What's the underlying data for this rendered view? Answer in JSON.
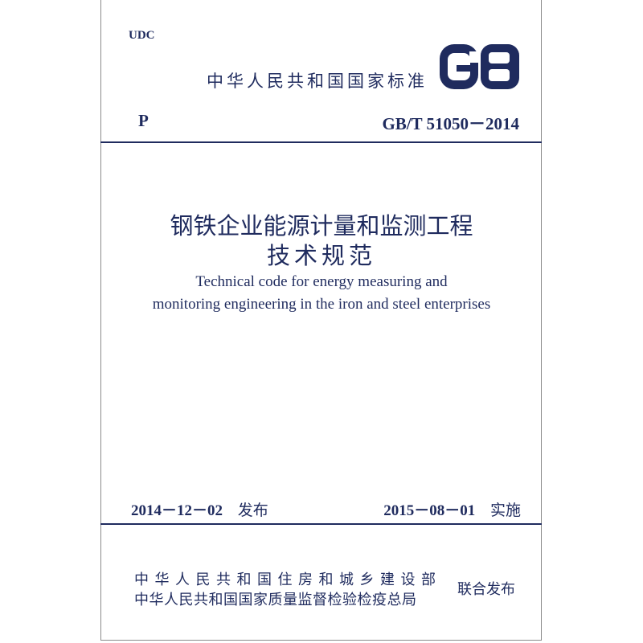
{
  "header": {
    "udc": "UDC",
    "national_standard": "中华人民共和国国家标准",
    "logo_text": "GB",
    "category": "P",
    "standard_code": "GB/T 51050－2014"
  },
  "title": {
    "zh_line1": "钢铁企业能源计量和监测工程",
    "zh_line2": "技术规范",
    "en_line1": "Technical code for energy measuring and",
    "en_line2": "monitoring engineering in the iron and steel enterprises"
  },
  "dates": {
    "issue": "2014－12－02",
    "issue_label": "发布",
    "implement": "2015－08－01",
    "implement_label": "实施"
  },
  "publishers": {
    "line1": "中华人民共和国住房和城乡建设部",
    "line2": "中华人民共和国国家质量监督检验检疫总局",
    "joint_label": "联合发布"
  },
  "colors": {
    "ink": "#1f2b5e"
  }
}
